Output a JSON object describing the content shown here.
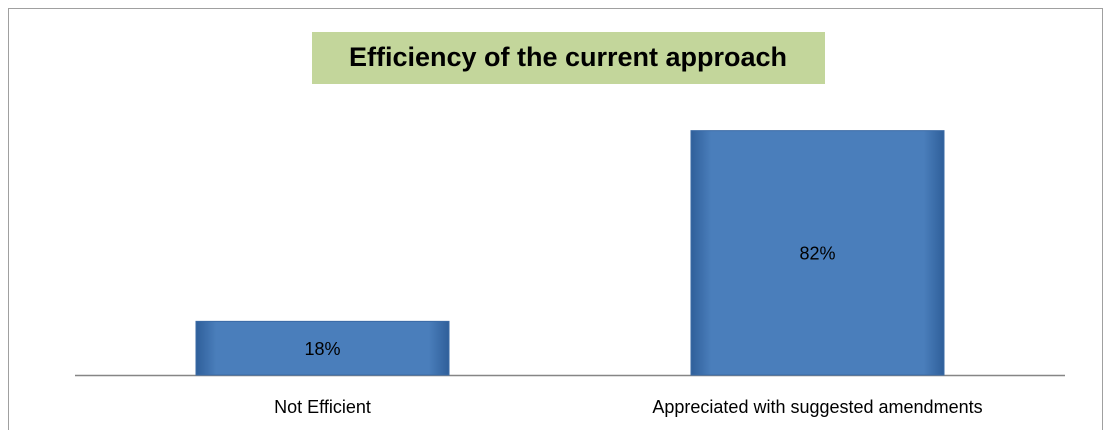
{
  "chart_data": {
    "type": "bar",
    "title": "Efficiency of the current approach",
    "categories": [
      "Not Efficient",
      "Appreciated with suggested amendments"
    ],
    "values": [
      18,
      82
    ],
    "value_labels": [
      "18%",
      "82%"
    ],
    "color": "#4a7ebb"
  }
}
